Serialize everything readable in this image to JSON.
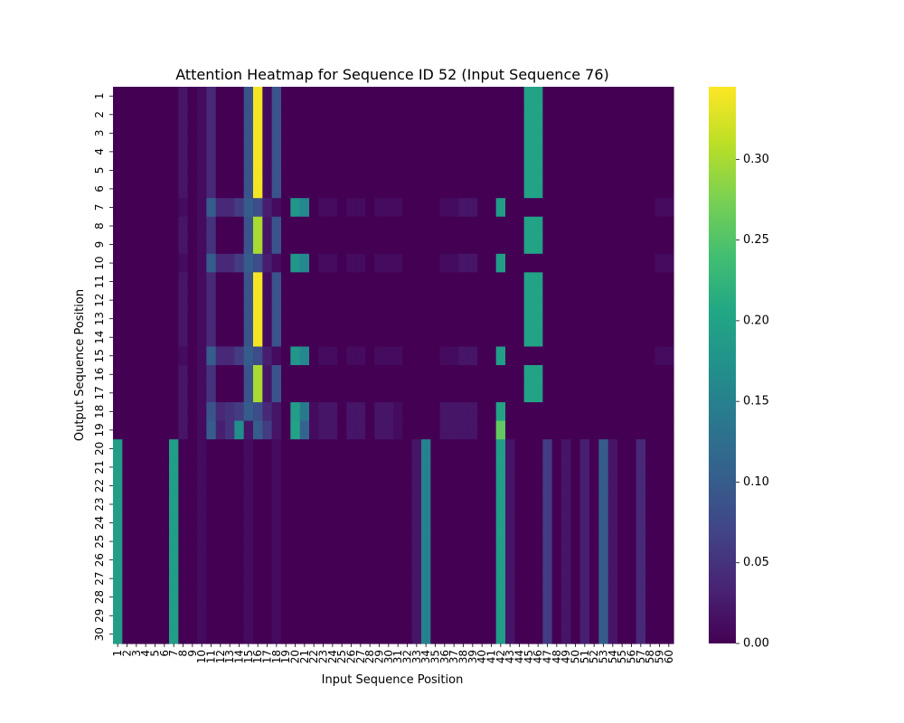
{
  "chart_data": {
    "type": "heatmap",
    "title": "Attention Heatmap for Sequence ID 52 (Input Sequence 76)",
    "xlabel": "Input Sequence Position",
    "ylabel": "Output Sequence Position",
    "x_categories": [
      "1",
      "2",
      "3",
      "4",
      "5",
      "6",
      "7",
      "8",
      "9",
      "10",
      "11",
      "12",
      "13",
      "14",
      "15",
      "16",
      "17",
      "18",
      "19",
      "20",
      "21",
      "22",
      "23",
      "24",
      "25",
      "26",
      "27",
      "28",
      "29",
      "30",
      "31",
      "32",
      "33",
      "34",
      "35",
      "36",
      "37",
      "38",
      "39",
      "40",
      "41",
      "42",
      "43",
      "44",
      "45",
      "46",
      "47",
      "48",
      "49",
      "50",
      "51",
      "52",
      "53",
      "54",
      "55",
      "56",
      "57",
      "58",
      "59",
      "60"
    ],
    "y_categories": [
      "1",
      "2",
      "3",
      "4",
      "5",
      "6",
      "7",
      "8",
      "9",
      "10",
      "11",
      "12",
      "13",
      "14",
      "15",
      "16",
      "17",
      "18",
      "19",
      "20",
      "21",
      "22",
      "23",
      "24",
      "25",
      "26",
      "27",
      "28",
      "29",
      "30"
    ],
    "colormap": "viridis",
    "vmin": 0.0,
    "vmax": 0.345,
    "colorbar_ticks": [
      "0.00",
      "0.05",
      "0.10",
      "0.15",
      "0.20",
      "0.25",
      "0.30"
    ],
    "grid": false,
    "legend": "colorbar right",
    "row_patterns": {
      "A": [
        0,
        0,
        0,
        0,
        0,
        0,
        0,
        0.02,
        0,
        0.01,
        0.04,
        0,
        0,
        0,
        0.09,
        0.34,
        0.01,
        0.09,
        0,
        0,
        0,
        0,
        0,
        0,
        0,
        0,
        0,
        0,
        0,
        0,
        0,
        0,
        0,
        0,
        0,
        0,
        0,
        0,
        0,
        0,
        0,
        0,
        0,
        0,
        0.2,
        0.2,
        0,
        0,
        0,
        0,
        0,
        0,
        0,
        0,
        0,
        0,
        0,
        0,
        0,
        0
      ],
      "B": [
        0,
        0,
        0,
        0,
        0,
        0,
        0,
        0.01,
        0,
        0.01,
        0.1,
        0.04,
        0.04,
        0.06,
        0.1,
        0.08,
        0.03,
        0.01,
        0,
        0.18,
        0.16,
        0,
        0.01,
        0.01,
        0,
        0.01,
        0.01,
        0,
        0.01,
        0.01,
        0.01,
        0,
        0,
        0,
        0,
        0.01,
        0.01,
        0.02,
        0.02,
        0,
        0,
        0.19,
        0,
        0,
        0,
        0,
        0,
        0,
        0,
        0,
        0,
        0,
        0,
        0,
        0,
        0,
        0,
        0,
        0.01,
        0.01
      ],
      "C": [
        0,
        0,
        0,
        0,
        0,
        0,
        0,
        0.02,
        0,
        0.01,
        0.05,
        0,
        0,
        0,
        0.09,
        0.3,
        0.02,
        0.09,
        0,
        0,
        0,
        0,
        0,
        0,
        0,
        0,
        0,
        0,
        0,
        0,
        0,
        0,
        0,
        0,
        0,
        0,
        0,
        0,
        0,
        0,
        0,
        0,
        0,
        0,
        0.2,
        0.2,
        0,
        0,
        0,
        0,
        0,
        0,
        0,
        0,
        0,
        0,
        0,
        0,
        0,
        0
      ],
      "D": [
        0,
        0,
        0,
        0,
        0,
        0,
        0,
        0.02,
        0,
        0.01,
        0.09,
        0.04,
        0.05,
        0.06,
        0.1,
        0.08,
        0.04,
        0.02,
        0,
        0.19,
        0.14,
        0.01,
        0.02,
        0.02,
        0,
        0.02,
        0.02,
        0,
        0.02,
        0.02,
        0.01,
        0,
        0,
        0,
        0,
        0.02,
        0.02,
        0.02,
        0.02,
        0,
        0,
        0.2,
        0,
        0,
        0,
        0,
        0,
        0,
        0,
        0,
        0,
        0,
        0,
        0,
        0,
        0,
        0,
        0,
        0,
        0
      ],
      "E": [
        0,
        0,
        0,
        0,
        0,
        0,
        0,
        0.02,
        0,
        0.01,
        0.1,
        0.03,
        0.05,
        0.17,
        0.02,
        0.1,
        0.06,
        0.02,
        0,
        0.2,
        0.11,
        0.01,
        0.02,
        0.02,
        0,
        0.02,
        0.02,
        0,
        0.02,
        0.02,
        0.01,
        0,
        0,
        0,
        0,
        0.02,
        0.02,
        0.02,
        0.02,
        0,
        0,
        0.26,
        0,
        0,
        0,
        0,
        0,
        0,
        0,
        0,
        0,
        0,
        0,
        0,
        0,
        0,
        0,
        0,
        0,
        0
      ],
      "F": [
        0.19,
        0,
        0,
        0,
        0,
        0,
        0.19,
        0,
        0,
        0.01,
        0,
        0,
        0,
        0,
        0.01,
        0,
        0,
        0.01,
        0,
        0,
        0,
        0,
        0,
        0,
        0,
        0,
        0,
        0,
        0,
        0,
        0,
        0,
        0.02,
        0.15,
        0,
        0,
        0,
        0,
        0,
        0,
        0,
        0.19,
        0.02,
        0,
        0,
        0,
        0.06,
        0,
        0.02,
        0,
        0.03,
        0,
        0.1,
        0.02,
        0,
        0,
        0.04,
        0,
        0,
        0
      ]
    },
    "rows": [
      "A",
      "A",
      "A",
      "A",
      "A",
      "A",
      "B",
      "C",
      "C",
      "B",
      "A",
      "A",
      "A",
      "A",
      "B",
      "C",
      "C",
      "D",
      "E",
      "F",
      "F",
      "F",
      "F",
      "F",
      "F",
      "F",
      "F",
      "F",
      "F",
      "F"
    ]
  }
}
